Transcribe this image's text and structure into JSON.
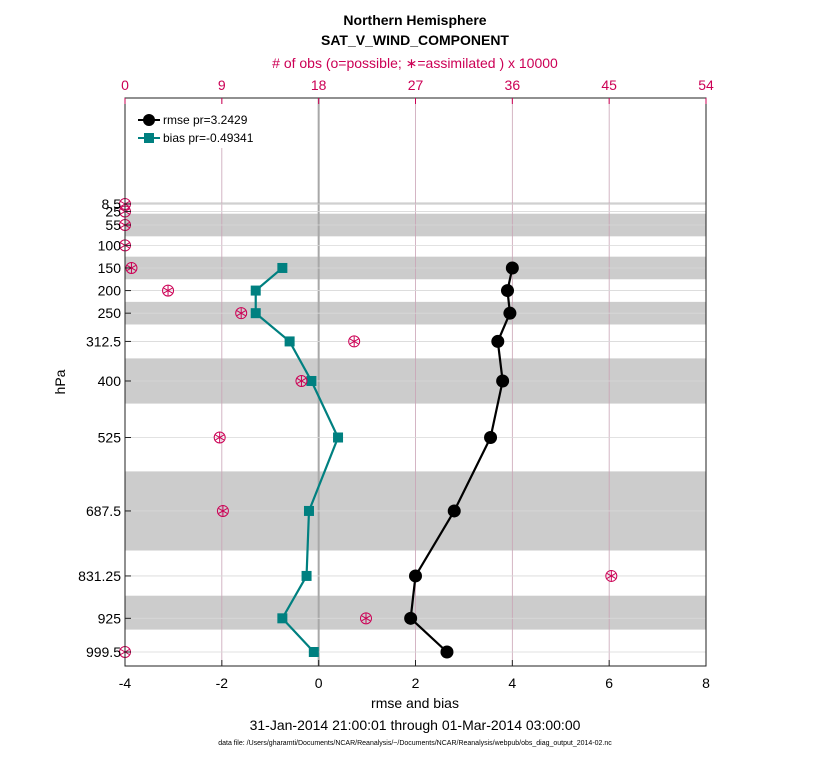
{
  "chart_data": {
    "type": "line",
    "title": "Northern Hemisphere",
    "subtitle": "SAT_V_WIND_COMPONENT",
    "top_axis_label": "# of obs (o=possible; ∗=assimilated ) x 10000",
    "xlabel": "rmse and bias",
    "ylabel": "hPa",
    "date_range": "31-Jan-2014 21:00:01 through 01-Mar-2014 03:00:00",
    "footnote": "data file: /Users/gharamti/Documents/NCAR/Reanalysis/~/Documents/NCAR/Reanalysis/webpub/obs_diag_output_2014-02.nc",
    "xlim": [
      -4,
      8
    ],
    "x_ticks": [
      "-4",
      "-2",
      "0",
      "2",
      "4",
      "6",
      "8"
    ],
    "top_xlim": [
      0,
      54
    ],
    "top_ticks": [
      "0",
      "9",
      "18",
      "27",
      "36",
      "45",
      "54"
    ],
    "levels": [
      8.5,
      25,
      55,
      100,
      150,
      200,
      250,
      312.5,
      400,
      525,
      687.5,
      831.25,
      925,
      999.5
    ],
    "level_labels": [
      "8.5",
      "25",
      "55",
      "100",
      "150",
      "200",
      "250",
      "312.5",
      "400",
      "525",
      "687.5",
      "831.25",
      "925",
      "999.5"
    ],
    "shaded_layers": [
      [
        5,
        10
      ],
      [
        30,
        80
      ],
      [
        125,
        175
      ],
      [
        225,
        275
      ],
      [
        350,
        450
      ],
      [
        600,
        775
      ],
      [
        875,
        950
      ]
    ],
    "legend": {
      "position": "top-left",
      "entries": [
        {
          "label": "rmse pr=3.2429",
          "color": "#000000"
        },
        {
          "label": "bias pr=-0.49341",
          "color": "#008080"
        }
      ]
    },
    "series": [
      {
        "name": "rmse",
        "color": "#000000",
        "marker": "circle",
        "points": [
          [
            150,
            4.0
          ],
          [
            200,
            3.9
          ],
          [
            250,
            3.95
          ],
          [
            312.5,
            3.7
          ],
          [
            400,
            3.8
          ],
          [
            525,
            3.55
          ],
          [
            687.5,
            2.8
          ],
          [
            831.25,
            2.0
          ],
          [
            925,
            1.9
          ],
          [
            999.5,
            2.65
          ]
        ]
      },
      {
        "name": "bias",
        "color": "#008080",
        "marker": "square",
        "points": [
          [
            150,
            -0.75
          ],
          [
            200,
            -1.3
          ],
          [
            250,
            -1.3
          ],
          [
            312.5,
            -0.6
          ],
          [
            400,
            -0.15
          ],
          [
            525,
            0.4
          ],
          [
            687.5,
            -0.2
          ],
          [
            831.25,
            -0.25
          ],
          [
            925,
            -0.75
          ],
          [
            999.5,
            -0.1
          ]
        ]
      }
    ],
    "obs_counts": {
      "color": "#cc0055",
      "points": [
        [
          8.5,
          0
        ],
        [
          25,
          0
        ],
        [
          55,
          0
        ],
        [
          100,
          0
        ],
        [
          150,
          0.6
        ],
        [
          200,
          4.0
        ],
        [
          250,
          10.8
        ],
        [
          312.5,
          21.3
        ],
        [
          400,
          16.4
        ],
        [
          525,
          8.8
        ],
        [
          687.5,
          9.1
        ],
        [
          831.25,
          45.2
        ],
        [
          925,
          22.4
        ],
        [
          999.5,
          0
        ]
      ]
    }
  }
}
